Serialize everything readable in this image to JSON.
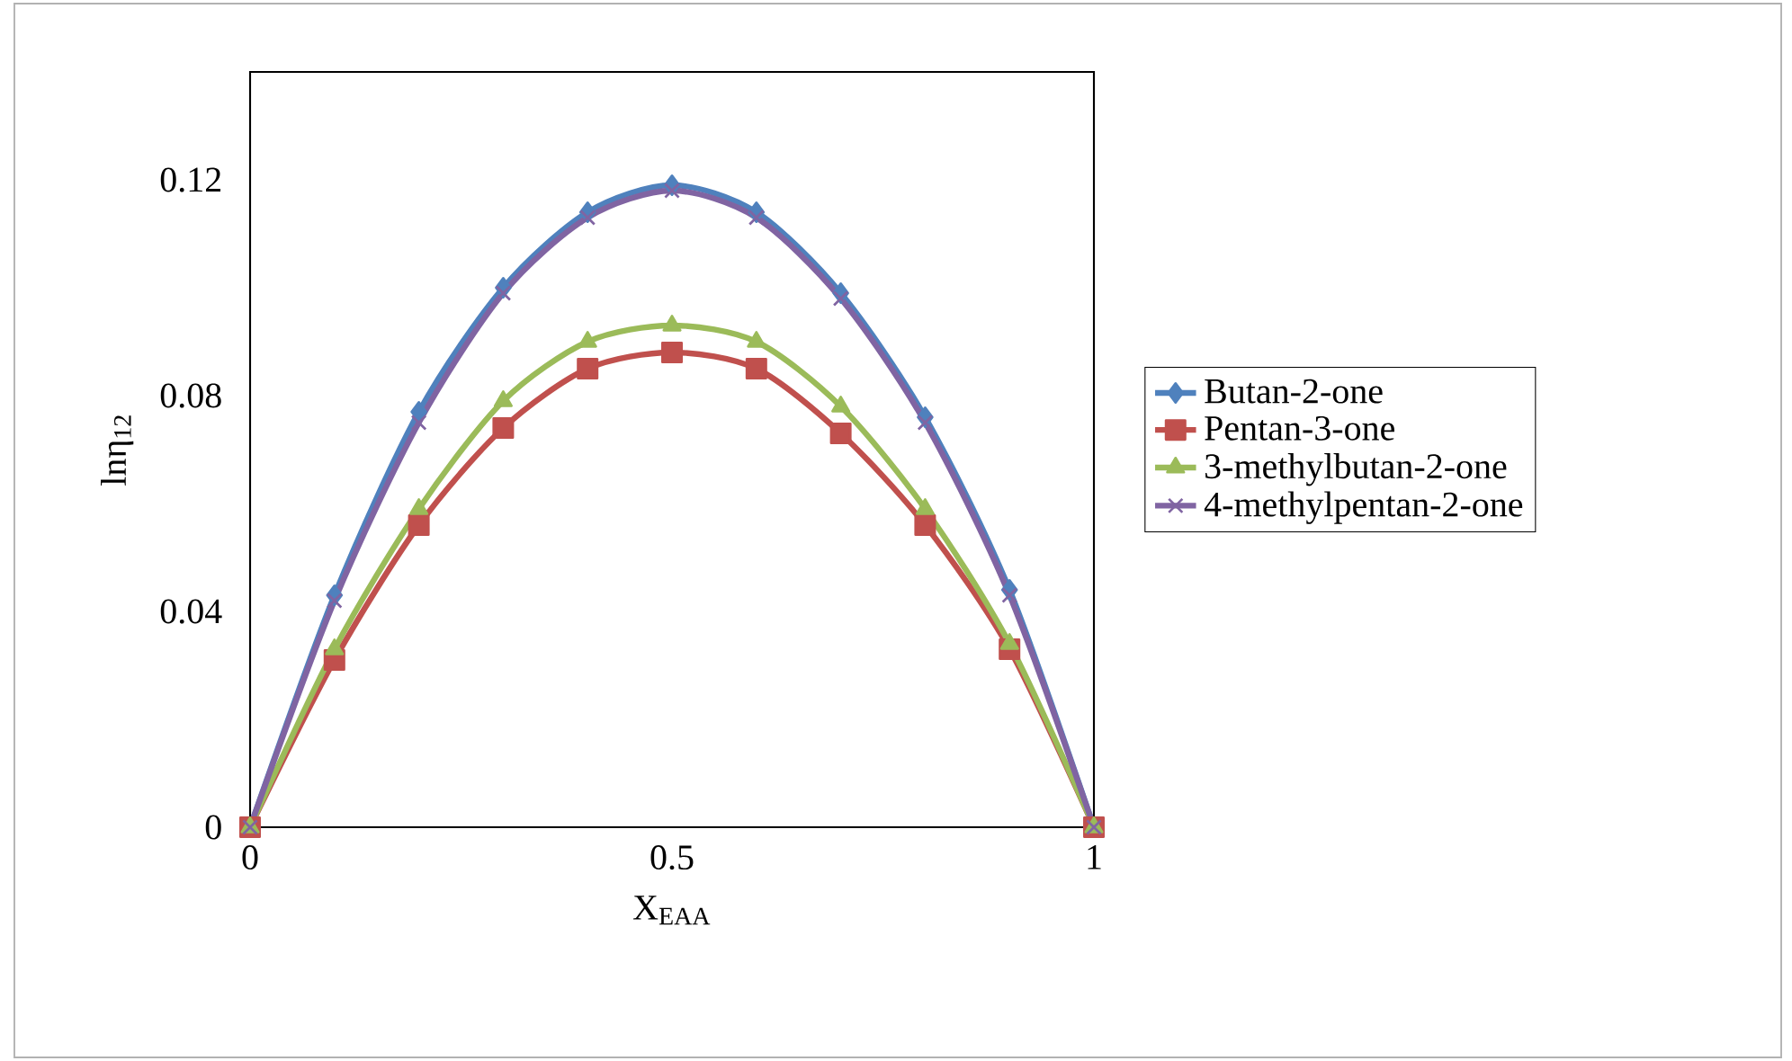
{
  "chart_data": {
    "type": "line",
    "xlabel": "X$_{EAA}$",
    "ylabel": "lnη$_{12}$",
    "x": [
      0,
      0.1,
      0.2,
      0.3,
      0.4,
      0.5,
      0.6,
      0.7,
      0.8,
      0.9,
      1
    ],
    "series": [
      {
        "name": "Butan-2-one",
        "color": "#4f81bd",
        "marker": "diamond",
        "values": [
          0,
          0.043,
          0.077,
          0.1,
          0.114,
          0.119,
          0.114,
          0.099,
          0.076,
          0.044,
          0
        ]
      },
      {
        "name": "Pentan-3-one",
        "color": "#c0504d",
        "marker": "square",
        "values": [
          0,
          0.031,
          0.056,
          0.074,
          0.085,
          0.088,
          0.085,
          0.073,
          0.056,
          0.033,
          0
        ]
      },
      {
        "name": "3-methylbutan-2-one",
        "color": "#9bbb59",
        "marker": "triangle",
        "values": [
          0,
          0.033,
          0.059,
          0.079,
          0.09,
          0.093,
          0.09,
          0.078,
          0.059,
          0.034,
          0
        ]
      },
      {
        "name": "4-methylpentan-2-one",
        "color": "#8064a2",
        "marker": "cross",
        "values": [
          0,
          0.042,
          0.075,
          0.099,
          0.113,
          0.118,
          0.113,
          0.098,
          0.075,
          0.043,
          0
        ]
      }
    ],
    "xlim": [
      0,
      1
    ],
    "ylim": [
      0,
      0.14
    ],
    "xticks": [
      0,
      0.5,
      1
    ],
    "yticks": [
      0,
      0.04,
      0.08,
      0.12
    ],
    "grid": false,
    "legend": "right"
  }
}
